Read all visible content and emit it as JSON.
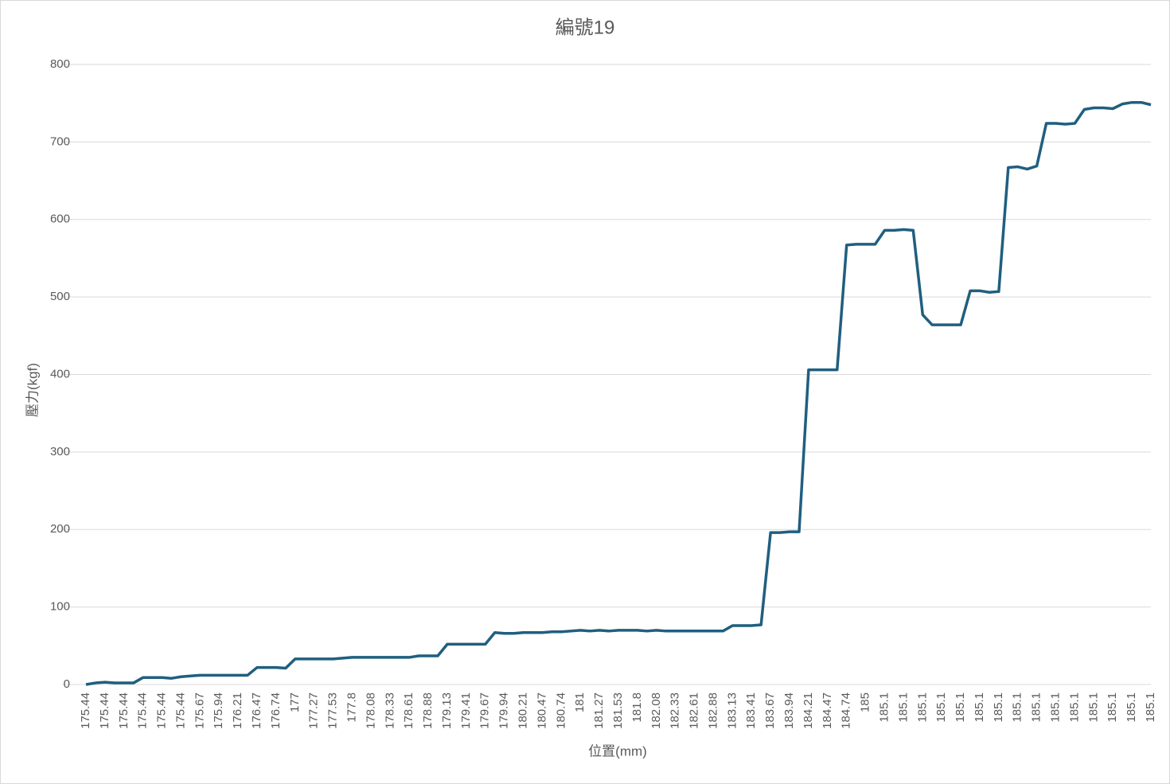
{
  "chart_data": {
    "type": "line",
    "title": "編號19",
    "x_label": "位置(mm)",
    "y_label": "壓力(kgf)",
    "categories": [
      "175.44",
      null,
      "175.44",
      null,
      "175.44",
      null,
      "175.44",
      null,
      "175.44",
      null,
      "175.44",
      null,
      "175.67",
      null,
      "175.94",
      null,
      "176.21",
      null,
      "176.47",
      null,
      "176.74",
      null,
      "177",
      null,
      "177.27",
      null,
      "177.53",
      null,
      "177.8",
      null,
      "178.08",
      null,
      "178.33",
      null,
      "178.61",
      null,
      "178.88",
      null,
      "179.13",
      null,
      "179.41",
      null,
      "179.67",
      null,
      "179.94",
      null,
      "180.21",
      null,
      "180.47",
      null,
      "180.74",
      null,
      "181",
      null,
      "181.27",
      null,
      "181.53",
      null,
      "181.8",
      null,
      "182.08",
      null,
      "182.33",
      null,
      "182.61",
      null,
      "182.88",
      null,
      "183.13",
      null,
      "183.41",
      null,
      "183.67",
      null,
      "183.94",
      null,
      "184.21",
      null,
      "184.47",
      null,
      "184.74",
      null,
      "185",
      null,
      "185.1",
      null,
      "185.1",
      null,
      "185.1",
      null,
      "185.1",
      null,
      "185.1",
      null,
      "185.1",
      null,
      "185.1",
      null,
      "185.1",
      null,
      "185.1",
      null,
      "185.1",
      null,
      "185.1",
      null,
      "185.1",
      null,
      "185.1",
      null,
      "185.1",
      null,
      "185.1"
    ],
    "series": [
      {
        "name": "壓力(kgf)",
        "color": "#1f5f7f",
        "values": [
          0,
          2,
          3,
          2,
          2,
          2,
          9,
          9,
          9,
          8,
          10,
          11,
          12,
          12,
          12,
          12,
          12,
          12,
          22,
          22,
          22,
          21,
          33,
          33,
          33,
          33,
          33,
          34,
          35,
          35,
          35,
          35,
          35,
          35,
          35,
          37,
          37,
          37,
          52,
          52,
          52,
          52,
          52,
          67,
          66,
          66,
          67,
          67,
          67,
          68,
          68,
          69,
          70,
          69,
          70,
          69,
          70,
          70,
          70,
          69,
          70,
          69,
          69,
          69,
          69,
          69,
          69,
          69,
          76,
          76,
          76,
          77,
          196,
          196,
          197,
          197,
          406,
          406,
          406,
          406,
          567,
          568,
          568,
          568,
          586,
          586,
          587,
          586,
          477,
          464,
          464,
          464,
          464,
          508,
          508,
          506,
          507,
          667,
          668,
          665,
          669,
          724,
          724,
          723,
          724,
          742,
          744,
          744,
          743,
          749,
          751,
          751,
          748
        ]
      }
    ],
    "ylim": [
      0,
      800
    ],
    "yticks": [
      0,
      100,
      200,
      300,
      400,
      500,
      600,
      700,
      800
    ],
    "grid": true
  }
}
